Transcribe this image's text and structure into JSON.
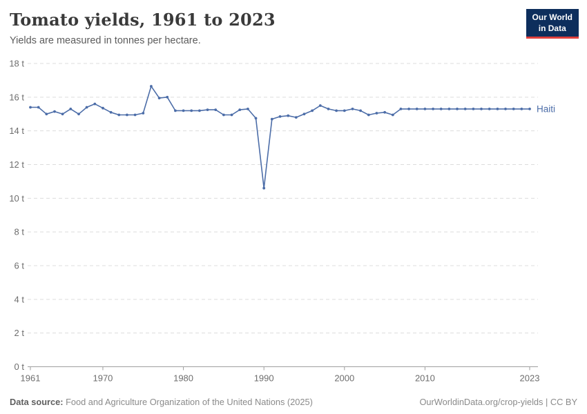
{
  "header": {
    "title": "Tomato yields, 1961 to 2023",
    "subtitle": "Yields are measured in tonnes per hectare.",
    "logo": {
      "line1": "Our World",
      "line2": "in Data"
    }
  },
  "chart_data": {
    "type": "line",
    "title": "Tomato yields, 1961 to 2023",
    "subtitle": "Yields are measured in tonnes per hectare.",
    "unit": "t",
    "ylabel": "tonnes per hectare",
    "ylim": [
      0,
      18
    ],
    "ytick_step": 2,
    "ytick_suffix": " t",
    "xlim": [
      1961,
      2023
    ],
    "xticks": [
      1961,
      1970,
      1980,
      1990,
      2000,
      2010,
      2023
    ],
    "grid": "horizontal-dashed",
    "legend_position": "end-of-line-label",
    "colors": {
      "line": "#4c6da8",
      "grid": "#dcdcdc",
      "axis": "#9e9e9e",
      "tick_text": "#6d6d6d",
      "logo_bg": "#0d2e5c",
      "logo_stripe": "#e0403c"
    },
    "series": [
      {
        "name": "Haiti",
        "color": "#4c6da8",
        "x": [
          1961,
          1962,
          1963,
          1964,
          1965,
          1966,
          1967,
          1968,
          1969,
          1970,
          1971,
          1972,
          1973,
          1974,
          1975,
          1976,
          1977,
          1978,
          1979,
          1980,
          1981,
          1982,
          1983,
          1984,
          1985,
          1986,
          1987,
          1988,
          1989,
          1990,
          1991,
          1992,
          1993,
          1994,
          1995,
          1996,
          1997,
          1998,
          1999,
          2000,
          2001,
          2002,
          2003,
          2004,
          2005,
          2006,
          2007,
          2008,
          2009,
          2010,
          2011,
          2012,
          2013,
          2014,
          2015,
          2016,
          2017,
          2018,
          2019,
          2020,
          2021,
          2022,
          2023
        ],
        "values": [
          15.4,
          15.4,
          15.0,
          15.15,
          15.0,
          15.3,
          15.0,
          15.4,
          15.6,
          15.35,
          15.1,
          14.95,
          14.95,
          14.95,
          15.05,
          16.65,
          15.95,
          16.0,
          15.2,
          15.2,
          15.2,
          15.2,
          15.25,
          15.25,
          14.95,
          14.95,
          15.25,
          15.3,
          14.75,
          10.6,
          14.7,
          14.85,
          14.9,
          14.8,
          15.0,
          15.2,
          15.5,
          15.3,
          15.2,
          15.2,
          15.3,
          15.2,
          14.95,
          15.05,
          15.1,
          14.95,
          15.3,
          15.3,
          15.3,
          15.3,
          15.3,
          15.3,
          15.3,
          15.3,
          15.3,
          15.3,
          15.3,
          15.3,
          15.3,
          15.3,
          15.3,
          15.3,
          15.3
        ]
      }
    ]
  },
  "footer": {
    "source_label": "Data source:",
    "source_text": " Food and Agriculture Organization of the United Nations (2025)",
    "credit": "OurWorldinData.org/crop-yields | CC BY"
  }
}
